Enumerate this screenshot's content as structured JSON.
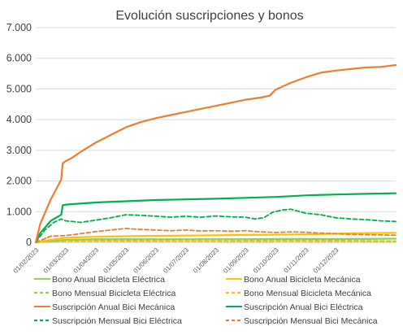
{
  "chart_data": {
    "type": "line",
    "title": "Evolución suscripciones y bonos",
    "xlabel": "",
    "ylabel": "",
    "ylim": [
      0,
      7000
    ],
    "yticks": [
      0,
      1000,
      2000,
      3000,
      4000,
      5000,
      6000,
      7000
    ],
    "ytick_labels": [
      "0",
      "1.000",
      "2.000",
      "3.000",
      "4.000",
      "5.000",
      "6.000",
      "7.000"
    ],
    "xtick_labels": [
      "01/02/2023",
      "01/03/2023",
      "01/04/2023",
      "01/05/2023",
      "01/06/2023",
      "01/07/2023",
      "01/08/2023",
      "01/09/2023",
      "01/10/2023",
      "01/11/2023",
      "01/12/2023"
    ],
    "x_range": [
      0,
      12
    ],
    "grid": true,
    "legend_position": "bottom",
    "series": [
      {
        "name": "Bono Anual Bicicleta Eléctrica",
        "color": "#92d050",
        "dash": "solid",
        "x": [
          0,
          0.5,
          1,
          2,
          3,
          4,
          5,
          6,
          7,
          8,
          9,
          10,
          11,
          12
        ],
        "values": [
          0,
          40,
          80,
          100,
          100,
          100,
          100,
          100,
          100,
          110,
          110,
          110,
          110,
          120
        ]
      },
      {
        "name": "Bono Anual Bicicleta Mecánica",
        "color": "#ffc000",
        "dash": "solid",
        "x": [
          0,
          0.5,
          1,
          2,
          3,
          4,
          5,
          6,
          7,
          8,
          9,
          10,
          11,
          12
        ],
        "values": [
          0,
          80,
          150,
          180,
          200,
          210,
          220,
          230,
          240,
          250,
          260,
          280,
          300,
          310
        ]
      },
      {
        "name": "Bono Mensual Bicicleta Eléctrica",
        "color": "#92d050",
        "dash": "dashed",
        "x": [
          0,
          0.5,
          1,
          2,
          3,
          4,
          5,
          6,
          7,
          8,
          9,
          10,
          11,
          12
        ],
        "values": [
          0,
          30,
          60,
          60,
          60,
          55,
          50,
          50,
          50,
          60,
          60,
          55,
          50,
          40
        ]
      },
      {
        "name": "Bono Mensual Bicicleta Mecánica",
        "color": "#ffc000",
        "dash": "dashed",
        "x": [
          0,
          0.5,
          1,
          2,
          3,
          4,
          5,
          6,
          7,
          8,
          9,
          10,
          11,
          12
        ],
        "values": [
          0,
          20,
          40,
          40,
          40,
          40,
          40,
          40,
          30,
          40,
          40,
          30,
          20,
          10
        ]
      },
      {
        "name": "Suscripción Anual  Bici Mecánica",
        "color": "#ed7d31",
        "dash": "solid",
        "x": [
          0,
          0.15,
          0.5,
          0.85,
          0.9,
          1,
          1.2,
          1.5,
          2,
          2.5,
          3,
          3.5,
          4,
          4.5,
          5,
          5.5,
          6,
          6.5,
          7,
          7.5,
          7.8,
          8,
          8.5,
          9,
          9.5,
          10,
          10.5,
          11,
          11.5,
          12
        ],
        "values": [
          0,
          600,
          1400,
          2050,
          2580,
          2650,
          2750,
          2950,
          3250,
          3500,
          3750,
          3920,
          4050,
          4150,
          4250,
          4350,
          4450,
          4550,
          4650,
          4720,
          4780,
          4980,
          5200,
          5380,
          5530,
          5600,
          5650,
          5700,
          5720,
          5780
        ]
      },
      {
        "name": "Suscripción Anual Bici Eléctrica",
        "color": "#00b050",
        "dash": "solid",
        "x": [
          0,
          0.15,
          0.5,
          0.85,
          0.9,
          1,
          2,
          3,
          4,
          5,
          6,
          7,
          8,
          9,
          10,
          11,
          12
        ],
        "values": [
          0,
          300,
          700,
          900,
          1210,
          1230,
          1300,
          1340,
          1380,
          1400,
          1420,
          1450,
          1480,
          1530,
          1560,
          1580,
          1600
        ]
      },
      {
        "name": "Suscripción Mensual Bici Eléctrica",
        "color": "#00b050",
        "dash": "dashed",
        "x": [
          0,
          0.3,
          0.6,
          0.85,
          1,
          1.5,
          2,
          2.5,
          3,
          3.5,
          4,
          4.5,
          5,
          5.5,
          6,
          6.5,
          7,
          7.3,
          7.6,
          7.9,
          8.2,
          8.5,
          9,
          9.5,
          10,
          10.5,
          11,
          11.5,
          12
        ],
        "values": [
          0,
          400,
          650,
          760,
          700,
          650,
          720,
          800,
          900,
          880,
          850,
          820,
          850,
          820,
          860,
          830,
          820,
          760,
          800,
          980,
          1050,
          1080,
          950,
          900,
          800,
          760,
          740,
          700,
          680
        ]
      },
      {
        "name": "Suscripción Mensual Bici Mecánica",
        "color": "#ed7d31",
        "dash": "dashed",
        "x": [
          0,
          0.5,
          1,
          1.5,
          2,
          2.5,
          3,
          3.5,
          4,
          4.5,
          5,
          5.5,
          6,
          6.5,
          7,
          7.5,
          8,
          8.5,
          9,
          9.5,
          10,
          10.5,
          11,
          11.5,
          12
        ],
        "values": [
          0,
          200,
          220,
          280,
          350,
          400,
          450,
          420,
          400,
          380,
          400,
          370,
          380,
          360,
          380,
          340,
          320,
          340,
          330,
          300,
          280,
          260,
          250,
          240,
          230
        ]
      }
    ]
  }
}
